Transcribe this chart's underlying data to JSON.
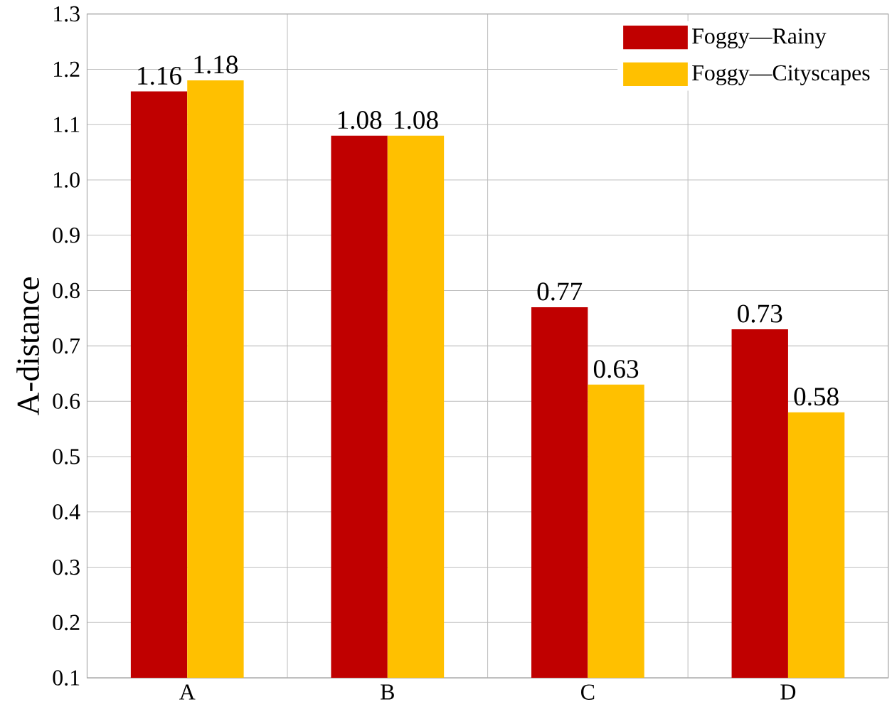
{
  "chart_data": {
    "type": "bar",
    "ylabel": "A-distance",
    "categories": [
      "A",
      "B",
      "C",
      "D"
    ],
    "series": [
      {
        "name": "Foggy—Rainy",
        "color": "#c00000",
        "values": [
          1.16,
          1.08,
          0.77,
          0.73
        ]
      },
      {
        "name": "Foggy—Cityscapes",
        "color": "#ffc000",
        "values": [
          1.18,
          1.08,
          0.63,
          0.58
        ]
      }
    ],
    "ylim": [
      0.1,
      1.3
    ],
    "yticks": [
      0.1,
      0.2,
      0.3,
      0.4,
      0.5,
      0.6,
      0.7,
      0.8,
      0.9,
      {
        "value": 1.0,
        "label": "1.0"
      },
      1.1,
      1.2,
      1.3
    ],
    "grid": true,
    "legend": "top right",
    "data_labels": true
  }
}
